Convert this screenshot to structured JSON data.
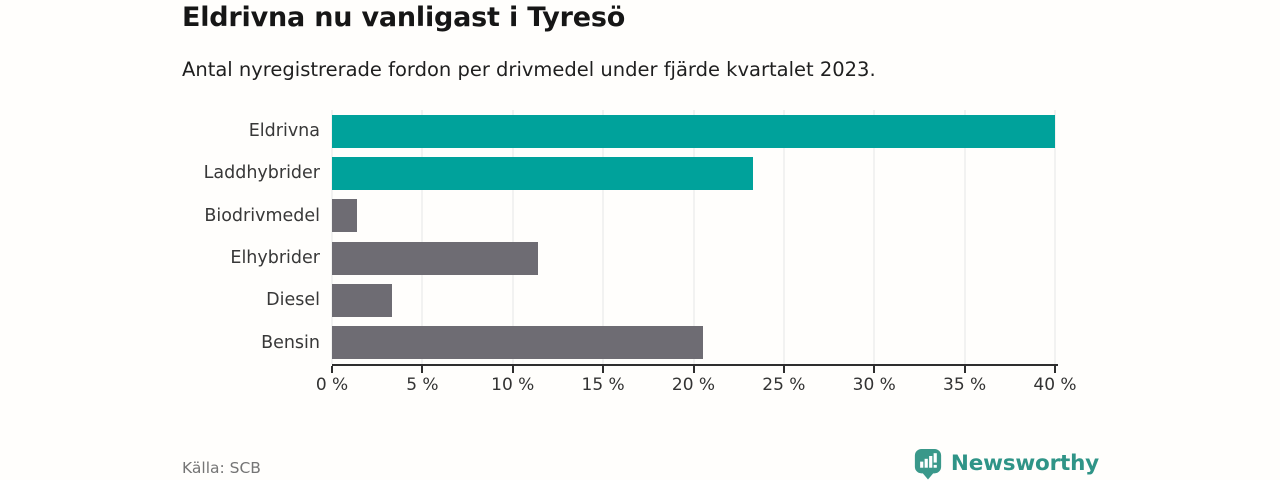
{
  "header": {
    "title": "Eldrivna nu vanligast i Tyresö",
    "subtitle": "Antal nyregistrerade fordon per drivmedel under fjärde kvartalet 2023."
  },
  "footer": {
    "source": "Källa: SCB",
    "brand_name": "Newsworthy"
  },
  "colors": {
    "electric_teal": "#00a29b",
    "fossil_gray": "#6e6c73",
    "brand_teal": "#3a988a",
    "axis": "#2e2e2e",
    "gridline": "#e6e6e6"
  },
  "chart_data": {
    "type": "bar",
    "orientation": "horizontal",
    "title": "Eldrivna nu vanligast i Tyresö",
    "subtitle": "Antal nyregistrerade fordon per drivmedel under fjärde kvartalet 2023.",
    "categories": [
      "Eldrivna",
      "Laddhybrider",
      "Biodrivmedel",
      "Elhybrider",
      "Diesel",
      "Bensin"
    ],
    "values": [
      40.0,
      23.3,
      1.4,
      11.4,
      3.3,
      20.5
    ],
    "unit": "%",
    "bar_colors": [
      "#00a29b",
      "#00a29b",
      "#6e6c73",
      "#6e6c73",
      "#6e6c73",
      "#6e6c73"
    ],
    "xlabel": "",
    "ylabel": "",
    "xlim": [
      0,
      40
    ],
    "x_tick_values": [
      0,
      5,
      10,
      15,
      20,
      25,
      30,
      35,
      40
    ],
    "x_tick_labels": [
      "0 %",
      "5 %",
      "10 %",
      "15 %",
      "20 %",
      "25 %",
      "30 %",
      "35 %",
      "40 %"
    ],
    "grid": "vertical",
    "legend": "none"
  }
}
